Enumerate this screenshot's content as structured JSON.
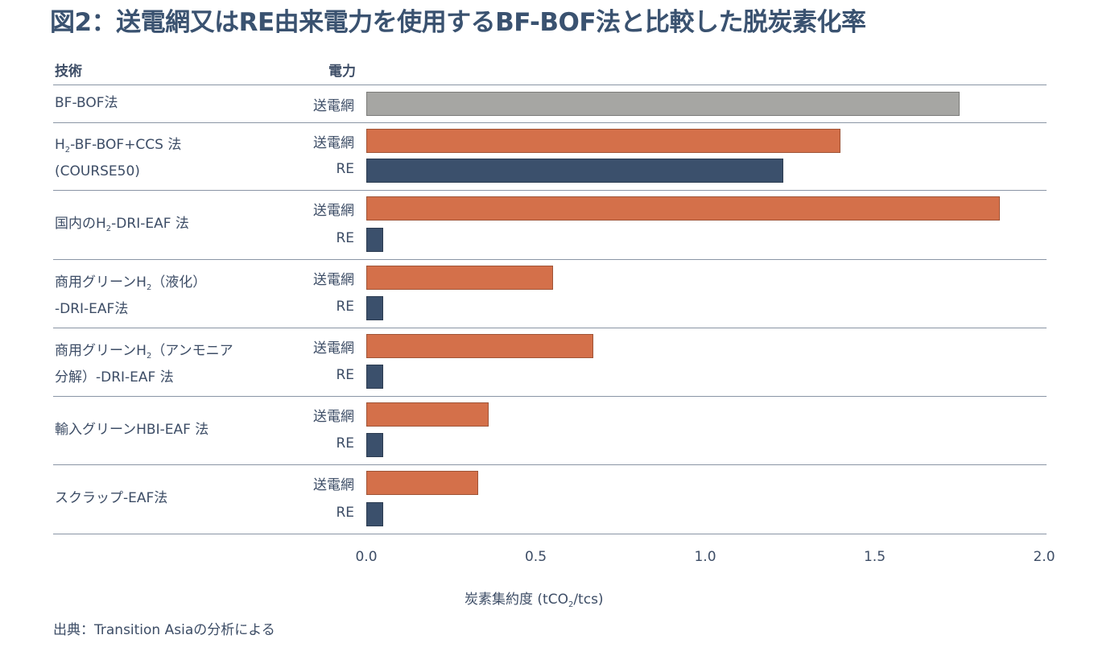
{
  "title": "図2：送電網又はRE由来電力を使用するBF-BOF法と比較した脱炭素化率",
  "chart_data": {
    "type": "bar",
    "orientation": "horizontal",
    "title": "図2：送電網又はRE由来電力を使用するBF-BOF法と比較した脱炭素化率",
    "column_headers": {
      "technology": "技術",
      "power": "電力"
    },
    "xlabel": {
      "pre": "炭素集約度 (tCO",
      "sub": "2",
      "post": "/tcs)"
    },
    "xlim": [
      0,
      2.0
    ],
    "xticks": [
      "0.0",
      "0.5",
      "1.0",
      "1.5",
      "2.0"
    ],
    "colors": {
      "baseline": "#a6a6a3",
      "grid": "#d4704a",
      "re": "#3b506c"
    },
    "groups": [
      {
        "label_lines": [
          [
            {
              "t": "BF-BOF法"
            }
          ]
        ],
        "bars": [
          {
            "power": "送電網",
            "value": 1.75,
            "kind": "baseline"
          }
        ]
      },
      {
        "label_lines": [
          [
            {
              "t": "H"
            },
            {
              "sub": "2"
            },
            {
              "t": "-BF-BOF+CCS 法"
            }
          ],
          [
            {
              "t": "(COURSE50)"
            }
          ]
        ],
        "bars": [
          {
            "power": "送電網",
            "value": 1.4,
            "kind": "grid"
          },
          {
            "power": "RE",
            "value": 1.23,
            "kind": "re"
          }
        ]
      },
      {
        "label_lines": [
          [
            {
              "t": "国内のH"
            },
            {
              "sub": "2"
            },
            {
              "t": "-DRI-EAF 法"
            }
          ]
        ],
        "bars": [
          {
            "power": "送電網",
            "value": 1.87,
            "kind": "grid"
          },
          {
            "power": "RE",
            "value": 0.05,
            "kind": "re"
          }
        ]
      },
      {
        "label_lines": [
          [
            {
              "t": "商用グリーンH"
            },
            {
              "sub": "2"
            },
            {
              "t": "（液化）"
            }
          ],
          [
            {
              "t": "-DRI-EAF法"
            }
          ]
        ],
        "bars": [
          {
            "power": "送電網",
            "value": 0.55,
            "kind": "grid"
          },
          {
            "power": "RE",
            "value": 0.05,
            "kind": "re"
          }
        ]
      },
      {
        "label_lines": [
          [
            {
              "t": "商用グリーンH"
            },
            {
              "sub": "2"
            },
            {
              "t": "（アンモニア"
            }
          ],
          [
            {
              "t": "分解）-DRI-EAF 法"
            }
          ]
        ],
        "bars": [
          {
            "power": "送電網",
            "value": 0.67,
            "kind": "grid"
          },
          {
            "power": "RE",
            "value": 0.05,
            "kind": "re"
          }
        ]
      },
      {
        "label_lines": [
          [
            {
              "t": "輸入グリーンHBI-EAF 法"
            }
          ]
        ],
        "bars": [
          {
            "power": "送電網",
            "value": 0.36,
            "kind": "grid"
          },
          {
            "power": "RE",
            "value": 0.05,
            "kind": "re"
          }
        ]
      },
      {
        "label_lines": [
          [
            {
              "t": "スクラップ-EAF法"
            }
          ]
        ],
        "bars": [
          {
            "power": "送電網",
            "value": 0.33,
            "kind": "grid"
          },
          {
            "power": "RE",
            "value": 0.05,
            "kind": "re"
          }
        ]
      }
    ]
  },
  "source": "出典：Transition Asiaの分析による"
}
